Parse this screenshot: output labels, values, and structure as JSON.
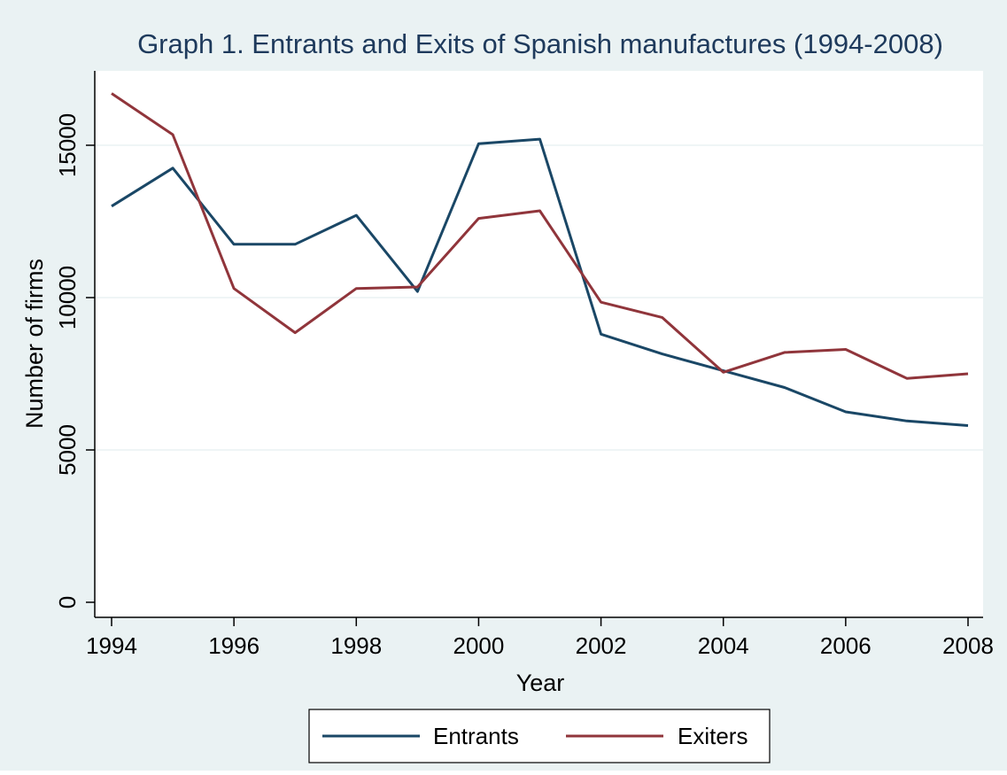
{
  "chart_data": {
    "type": "line",
    "title": "Graph 1. Entrants and Exits of Spanish manufactures (1994-2008)",
    "xlabel": "Year",
    "ylabel": "Number of firms",
    "x": [
      1994,
      1995,
      1996,
      1997,
      1998,
      1999,
      2000,
      2001,
      2002,
      2003,
      2004,
      2005,
      2006,
      2007,
      2008
    ],
    "xticks": [
      "1994",
      "1996",
      "1998",
      "2000",
      "2002",
      "2004",
      "2006",
      "2008"
    ],
    "yticks": [
      "0",
      "5000",
      "10000",
      "15000"
    ],
    "xlim": [
      1994,
      2008
    ],
    "ylim": [
      0,
      17000
    ],
    "grid": true,
    "legend_position": "bottom",
    "series": [
      {
        "name": "Entrants",
        "color": "#1a4766",
        "values": [
          13000,
          14250,
          11750,
          11750,
          12700,
          10200,
          15050,
          15200,
          8800,
          8150,
          7600,
          7050,
          6250,
          5950,
          5800
        ]
      },
      {
        "name": "Exiters",
        "color": "#90353b",
        "values": [
          16700,
          15350,
          10300,
          8850,
          10300,
          10350,
          12600,
          12850,
          9850,
          9350,
          7550,
          8200,
          8300,
          7350,
          7500
        ]
      }
    ]
  }
}
